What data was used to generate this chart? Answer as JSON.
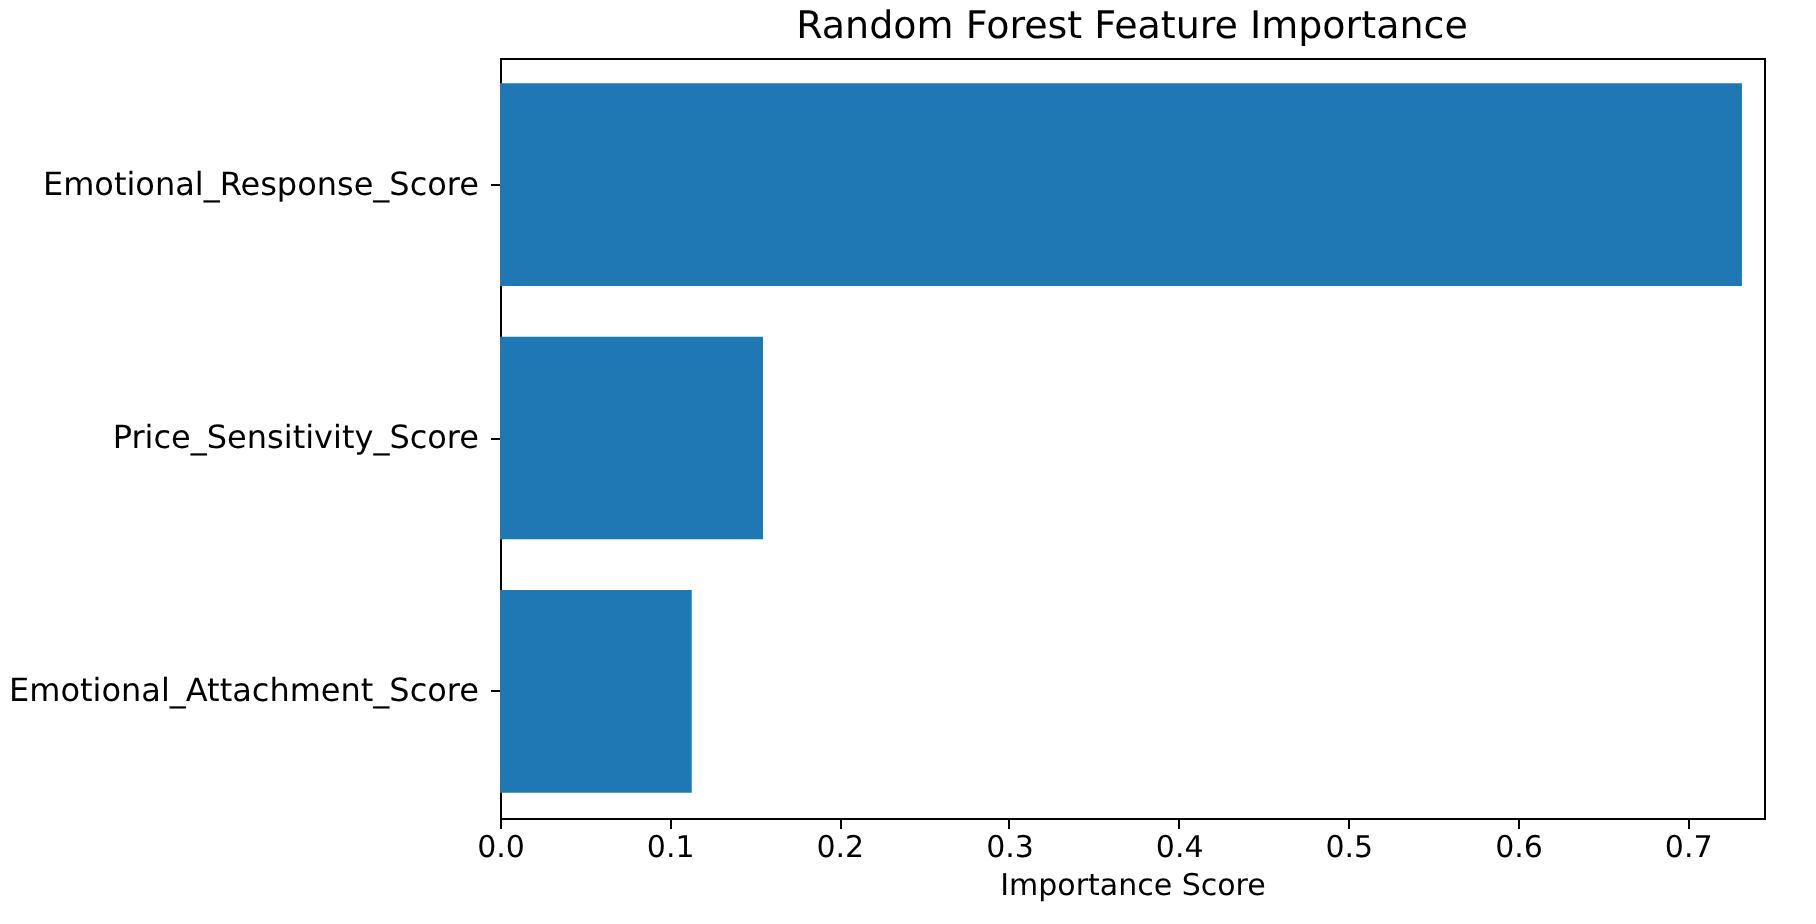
{
  "chart_data": {
    "type": "bar",
    "orientation": "horizontal",
    "title": "Random Forest Feature Importance",
    "xlabel": "Importance Score",
    "categories": [
      "Emotional_Response_Score",
      "Price_Sensitivity_Score",
      "Emotional_Attachment_Score"
    ],
    "values": [
      0.732,
      0.155,
      0.113
    ],
    "color": "#1f77b4",
    "xlim": [
      0,
      0.745
    ],
    "xticks": [
      {
        "value": 0,
        "label": "0.0"
      },
      {
        "value": 0.1,
        "label": "0.1"
      },
      {
        "value": 0.2,
        "label": "0.2"
      },
      {
        "value": 0.3,
        "label": "0.3"
      },
      {
        "value": 0.4,
        "label": "0.4"
      },
      {
        "value": 0.5,
        "label": "0.5"
      },
      {
        "value": 0.6,
        "label": "0.6"
      },
      {
        "value": 0.7,
        "label": "0.7"
      }
    ],
    "grid": false
  }
}
